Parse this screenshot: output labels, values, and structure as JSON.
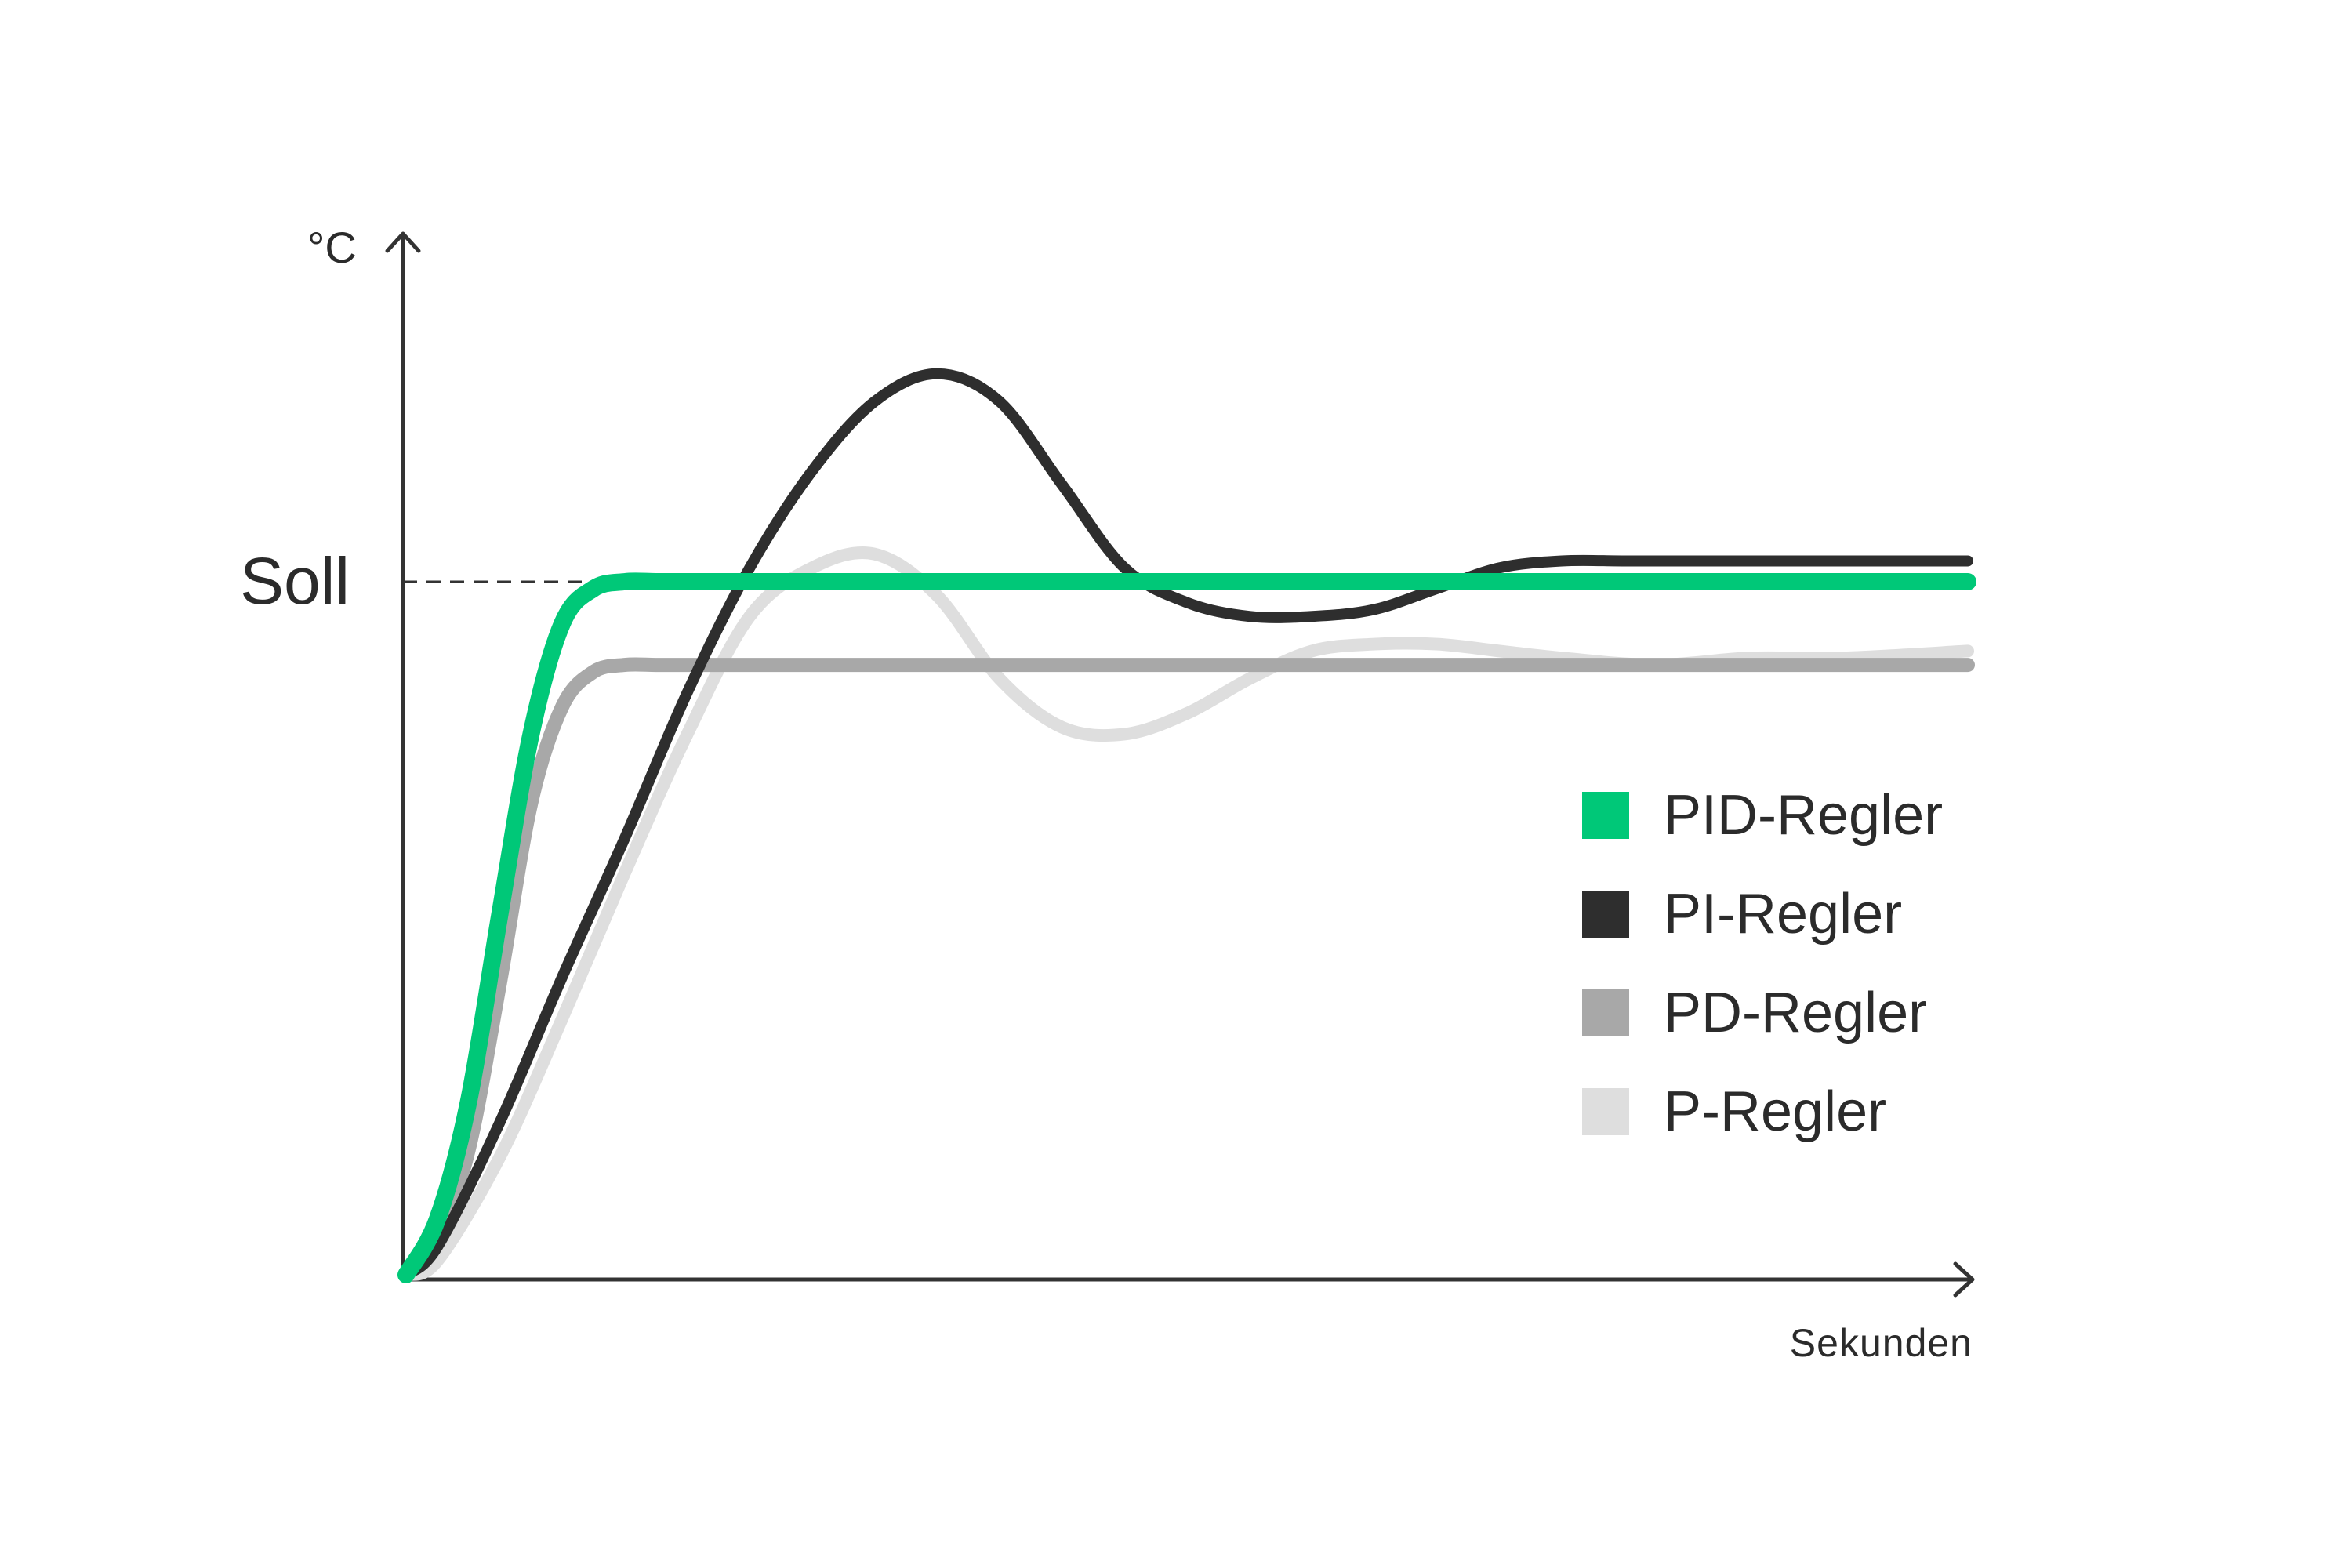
{
  "chart_data": {
    "type": "line",
    "ylabel": "°C",
    "xlabel": "Sekunden",
    "setpoint": {
      "label": "Soll",
      "value": 1.0
    },
    "xlim": [
      0,
      100
    ],
    "ylim": [
      0,
      1.5
    ],
    "grid": false,
    "legend_position": "right",
    "series": [
      {
        "name": "PID-Regler",
        "color": "#00c878",
        "x": [
          0,
          2,
          4,
          6,
          8,
          10,
          12,
          14,
          16,
          18,
          20,
          30,
          40,
          50,
          60,
          70,
          80,
          90,
          100
        ],
        "y": [
          0,
          0.08,
          0.25,
          0.52,
          0.78,
          0.94,
          0.99,
          1.0,
          1.0,
          1.0,
          1.0,
          1.0,
          1.0,
          1.0,
          1.0,
          1.0,
          1.0,
          1.0,
          1.0
        ]
      },
      {
        "name": "PI-Regler",
        "color": "#2e2e2e",
        "x": [
          0,
          2,
          6,
          10,
          14,
          18,
          22,
          26,
          30,
          34,
          38,
          42,
          46,
          50,
          54,
          58,
          62,
          66,
          70,
          74,
          78,
          82,
          86,
          90,
          95,
          100
        ],
        "y": [
          0,
          0.04,
          0.22,
          0.43,
          0.63,
          0.84,
          1.02,
          1.16,
          1.26,
          1.3,
          1.26,
          1.14,
          1.02,
          0.97,
          0.95,
          0.95,
          0.96,
          0.99,
          1.02,
          1.03,
          1.03,
          1.03,
          1.03,
          1.03,
          1.03,
          1.03
        ]
      },
      {
        "name": "PD-Regler",
        "color": "#a8a8a8",
        "x": [
          0,
          2,
          4,
          6,
          8,
          10,
          12,
          14,
          16,
          18,
          20,
          30,
          40,
          50,
          60,
          70,
          80,
          90,
          100
        ],
        "y": [
          0,
          0.05,
          0.18,
          0.42,
          0.68,
          0.82,
          0.87,
          0.88,
          0.88,
          0.88,
          0.88,
          0.88,
          0.88,
          0.88,
          0.88,
          0.88,
          0.88,
          0.88,
          0.88
        ]
      },
      {
        "name": "P-Regler",
        "color": "#dedede",
        "x": [
          0,
          2,
          6,
          10,
          14,
          18,
          22,
          26,
          30,
          34,
          38,
          42,
          46,
          50,
          54,
          58,
          62,
          66,
          70,
          74,
          80,
          86,
          92,
          100
        ],
        "y": [
          0,
          0.02,
          0.17,
          0.37,
          0.58,
          0.78,
          0.95,
          1.02,
          1.04,
          0.98,
          0.86,
          0.79,
          0.78,
          0.81,
          0.86,
          0.9,
          0.91,
          0.91,
          0.9,
          0.89,
          0.88,
          0.89,
          0.89,
          0.9
        ]
      }
    ]
  }
}
